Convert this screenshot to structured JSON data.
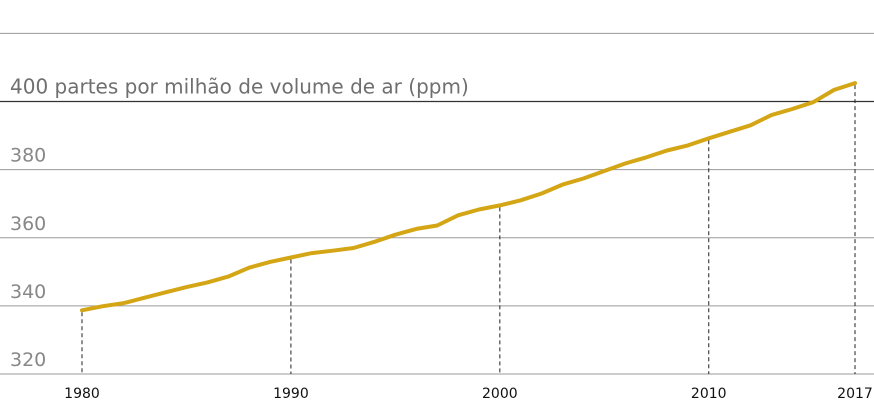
{
  "chart_data": {
    "type": "line",
    "ylim": [
      315,
      420
    ],
    "xlim": [
      1980,
      2017
    ],
    "grid": true,
    "y_ticks": [
      {
        "value": 320,
        "label": "320"
      },
      {
        "value": 340,
        "label": "340"
      },
      {
        "value": 360,
        "label": "360"
      },
      {
        "value": 380,
        "label": "380"
      },
      {
        "value": 400,
        "label": "400 partes por milhão de volume de ar (ppm)"
      },
      {
        "value": 420,
        "label": ""
      }
    ],
    "x_ticks": [
      {
        "value": 1980,
        "label": "1980"
      },
      {
        "value": 1990,
        "label": "1990"
      },
      {
        "value": 2000,
        "label": "2000"
      },
      {
        "value": 2010,
        "label": "2010"
      },
      {
        "value": 2017,
        "label": "2017"
      }
    ],
    "series": [
      {
        "color": "#d4a615",
        "x": [
          1980,
          1981,
          1982,
          1983,
          1984,
          1985,
          1986,
          1987,
          1988,
          1989,
          1990,
          1991,
          1992,
          1993,
          1994,
          1995,
          1996,
          1997,
          1998,
          1999,
          2000,
          2001,
          2002,
          2003,
          2004,
          2005,
          2006,
          2007,
          2008,
          2009,
          2010,
          2011,
          2012,
          2013,
          2014,
          2015,
          2016,
          2017
        ],
        "y": [
          338.7,
          339.9,
          340.8,
          342.4,
          344.0,
          345.5,
          346.9,
          348.6,
          351.2,
          352.9,
          354.2,
          355.5,
          356.2,
          357.0,
          358.8,
          360.9,
          362.6,
          363.6,
          366.6,
          368.3,
          369.5,
          371.0,
          373.0,
          375.6,
          377.4,
          379.6,
          381.8,
          383.6,
          385.6,
          387.1,
          389.2,
          391.1,
          393.0,
          396.0,
          397.8,
          399.8,
          403.4,
          405.4
        ]
      }
    ]
  }
}
